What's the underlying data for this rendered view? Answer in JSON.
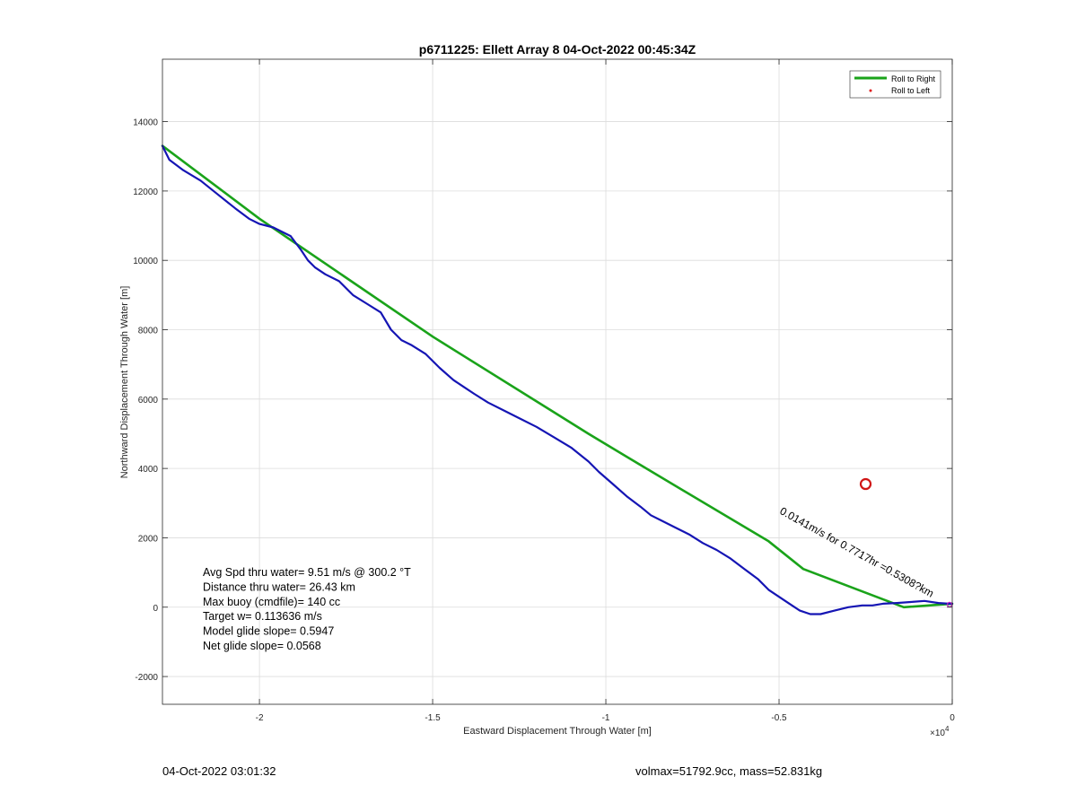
{
  "chart_data": {
    "type": "line",
    "title": "p6711225: Ellett Array 8 04-Oct-2022 00:45:34Z",
    "xlabel": "Eastward Displacement Through Water [m]",
    "ylabel": "Northward Displacement Through Water [m]",
    "x_exponent_label": "×10",
    "x_exponent_power": "4",
    "xlim": [
      -22800,
      0
    ],
    "ylim": [
      -2800,
      15800
    ],
    "x_ticks": [
      -20000,
      -15000,
      -10000,
      -5000,
      0
    ],
    "x_tick_labels": [
      "-2",
      "-1.5",
      "-1",
      "-0.5",
      "0"
    ],
    "y_ticks": [
      -2000,
      0,
      2000,
      4000,
      6000,
      8000,
      10000,
      12000,
      14000
    ],
    "y_tick_labels": [
      "-2000",
      "0",
      "2000",
      "4000",
      "6000",
      "8000",
      "10000",
      "12000",
      "14000"
    ],
    "grid": true,
    "legend_position": "top-right",
    "series": [
      {
        "name": "Roll to Right",
        "color": "#1aa31a",
        "x": [
          -22800,
          -20000,
          -15000,
          -10500,
          -9000,
          -5300,
          -4300,
          -1400,
          0
        ],
        "y": [
          13300,
          11200,
          7800,
          5000,
          4100,
          1900,
          1100,
          0,
          100
        ]
      },
      {
        "name": "Roll to Left",
        "color": "#e01c1c",
        "marker": "dot",
        "x": [],
        "y": []
      },
      {
        "name": "",
        "color": "#1515b4",
        "x": [
          -22800,
          -22600,
          -22200,
          -21700,
          -21200,
          -20700,
          -20300,
          -20000,
          -19600,
          -19100,
          -18800,
          -18600,
          -18400,
          -18100,
          -17700,
          -17300,
          -16900,
          -16500,
          -16200,
          -15900,
          -15600,
          -15200,
          -14800,
          -14400,
          -14100,
          -13800,
          -13400,
          -12900,
          -12500,
          -12000,
          -11500,
          -11000,
          -10500,
          -10200,
          -9800,
          -9400,
          -9000,
          -8700,
          -8400,
          -8000,
          -7600,
          -7200,
          -6800,
          -6400,
          -6000,
          -5600,
          -5300,
          -5000,
          -4700,
          -4400,
          -4100,
          -3800,
          -3400,
          -3000,
          -2600,
          -2300,
          -2000,
          -1600,
          -1200,
          -800,
          -400,
          -100,
          0
        ],
        "y": [
          13300,
          12900,
          12600,
          12300,
          11900,
          11500,
          11200,
          11050,
          10950,
          10700,
          10300,
          10000,
          9800,
          9600,
          9400,
          9000,
          8750,
          8500,
          8000,
          7700,
          7550,
          7300,
          6900,
          6550,
          6350,
          6150,
          5900,
          5650,
          5450,
          5200,
          4900,
          4600,
          4200,
          3900,
          3550,
          3200,
          2900,
          2650,
          2500,
          2300,
          2100,
          1850,
          1650,
          1400,
          1100,
          800,
          500,
          300,
          100,
          -100,
          -200,
          -200,
          -100,
          0,
          50,
          50,
          100,
          120,
          150,
          180,
          120,
          100,
          100
        ]
      }
    ],
    "stats": [
      "Avg Spd thru water=  9.51 m/s @ 300.2 °T",
      "Distance thru water= 26.43 km",
      "Max buoy (cmdfile)= 140 cc",
      "Target w= 0.113636 m/s",
      "Model glide slope= 0.5947",
      "Net glide slope= 0.0568"
    ],
    "target_marker": {
      "x": -2500,
      "y": 3550,
      "color": "#d01515"
    },
    "current_annotation": "0.0141m/s for 0.7717hr =0.5308?km"
  },
  "footer": {
    "date": "04-Oct-2022 03:01:32",
    "volume_mass": "volmax=51792.9cc, mass=52.831kg"
  }
}
